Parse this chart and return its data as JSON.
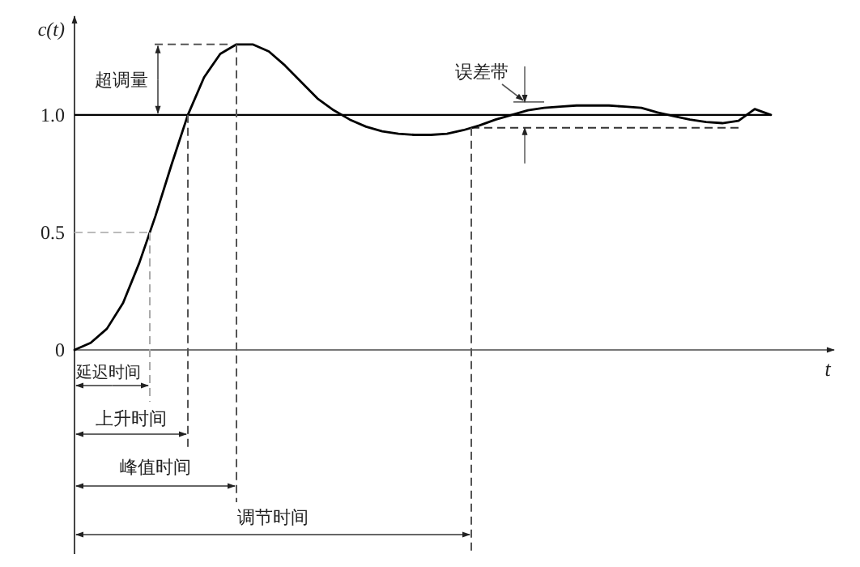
{
  "chart_data": {
    "type": "line",
    "ylabel": "c(t)",
    "xlabel": "t",
    "categories": [
      null,
      null,
      null,
      null,
      null,
      null,
      null,
      null,
      null,
      null,
      null,
      null,
      null,
      null,
      null,
      null,
      null,
      null,
      null,
      null,
      null,
      null,
      null,
      null,
      null,
      null,
      null,
      null,
      null,
      null,
      null,
      null,
      null,
      null,
      null,
      null,
      null,
      null,
      null,
      null,
      null,
      null,
      null,
      null
    ],
    "series": [
      {
        "color": "#000000",
        "values": [
          0,
          0.03,
          0.09,
          0.2,
          0.37,
          0.57,
          0.79,
          1.0,
          1.16,
          1.26,
          1.3,
          1.3,
          1.27,
          1.21,
          1.14,
          1.07,
          1.02,
          0.98,
          0.95,
          0.93,
          0.92,
          0.915,
          0.915,
          0.92,
          0.935,
          0.955,
          0.98,
          1.0,
          1.02,
          1.03,
          1.035,
          1.04,
          1.04,
          1.04,
          1.035,
          1.03,
          1.01,
          0.995,
          0.98,
          0.97,
          0.965,
          0.975,
          1.025,
          1.0
        ]
      }
    ],
    "ylim": [
      0,
      1.42
    ],
    "yticks": [
      0,
      0.5,
      {
        "value": 1,
        "label": "1.0"
      }
    ],
    "ref_lines": [
      {
        "axis": "y",
        "value": 1,
        "color": "#000000",
        "line_style": "solid"
      },
      {
        "axis": "y",
        "value": 0.945,
        "color": "#333333",
        "line_style": "dashed",
        "label": "误差带"
      },
      {
        "axis": "y",
        "value": 1.3,
        "color": "#555555",
        "line_style": "dashed"
      },
      {
        "axis": "y",
        "value": 0.5,
        "color": "#bbbbbb",
        "line_style": "dashed"
      }
    ],
    "annotations": [
      "超调量",
      "延迟时间",
      "上升时间",
      "峰值时间",
      "调节时间"
    ],
    "grid": false,
    "marker": "none",
    "line_style": "solid"
  }
}
